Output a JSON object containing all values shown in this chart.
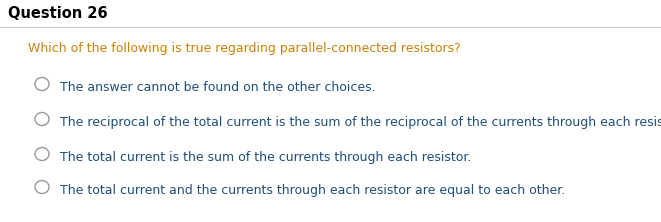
{
  "title": "Question 26",
  "title_fontsize": 10.5,
  "title_fontweight": "bold",
  "question": "Which of the following is true regarding parallel-connected resistors?",
  "question_color": "#C8820A",
  "question_fontsize": 9.0,
  "choices": [
    "The answer cannot be found on the other choices.",
    "The reciprocal of the total current is the sum of the reciprocal of the currents through each resistor.",
    "The total current is the sum of the currents through each resistor.",
    "The total current and the currents through each resistor are equal to each other."
  ],
  "choice_color": "#1F4E79",
  "choice_fontsize": 9.0,
  "background_color": "#ffffff",
  "circle_edge_color": "#999999",
  "line_color": "#CCCCCC",
  "figwidth": 6.61,
  "figheight": 2.22,
  "dpi": 100
}
